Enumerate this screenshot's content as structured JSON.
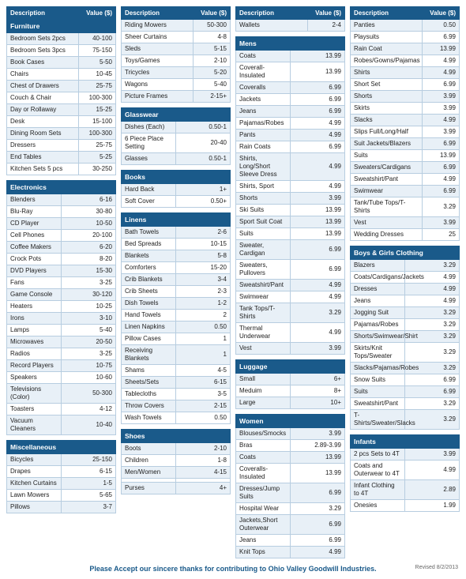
{
  "header_desc": "Description",
  "header_val": "Value ($)",
  "columns": [
    [
      {
        "section": "Furniture",
        "headerBefore": true,
        "rows": [
          [
            "Bedroom Sets 2pcs",
            "40-100"
          ],
          [
            "Bedroom Sets 3pcs",
            "75-150"
          ],
          [
            "Book Cases",
            "5-50"
          ],
          [
            "Chairs",
            "10-45"
          ],
          [
            "Chest of Drawers",
            "25-75"
          ],
          [
            "Couch & Chair",
            "100-300"
          ],
          [
            "Day or Rollaway",
            "15-25"
          ],
          [
            "Desk",
            "15-100"
          ],
          [
            "Dining Room Sets",
            "100-300"
          ],
          [
            "Dressers",
            "25-75"
          ],
          [
            "End Tables",
            "5-25"
          ],
          [
            "Kitchen Sets 5 pcs",
            "30-250"
          ]
        ]
      },
      {
        "section": "Electronics",
        "rows": [
          [
            "Blenders",
            "6-16"
          ],
          [
            "Blu-Ray",
            "30-80"
          ],
          [
            "CD Player",
            "10-50"
          ],
          [
            "Cell Phones",
            "20-100"
          ],
          [
            "Coffee Makers",
            "6-20"
          ],
          [
            "Crock Pots",
            "8-20"
          ],
          [
            "DVD Players",
            "15-30"
          ],
          [
            "Fans",
            "3-25"
          ],
          [
            "Game Console",
            "30-120"
          ],
          [
            "Heaters",
            "10-25"
          ],
          [
            "Irons",
            "3-10"
          ],
          [
            "Lamps",
            "5-40"
          ],
          [
            "Microwaves",
            "20-50"
          ],
          [
            "Radios",
            "3-25"
          ],
          [
            "Record Players",
            "10-75"
          ],
          [
            "Speakers",
            "10-60"
          ],
          [
            "Televisions (Color)",
            "50-300"
          ],
          [
            "Toasters",
            "4-12"
          ],
          [
            "Vacuum Cleaners",
            "10-40"
          ]
        ]
      },
      {
        "section": "Miscellaneous",
        "rows": [
          [
            "Bicycles",
            "25-150"
          ],
          [
            "Drapes",
            "6-15"
          ],
          [
            "Kitchen Curtains",
            "1-5"
          ],
          [
            "Lawn Mowers",
            "5-65"
          ],
          [
            "Pillows",
            "3-7"
          ]
        ]
      }
    ],
    [
      {
        "section": null,
        "headerBefore": true,
        "rows": [
          [
            "Riding Mowers",
            "50-300"
          ],
          [
            "Sheer Curtains",
            "4-8"
          ],
          [
            "Sleds",
            "5-15"
          ],
          [
            "Toys/Games",
            "2-10"
          ],
          [
            "Tricycles",
            "5-20"
          ],
          [
            "Wagons",
            "5-40"
          ],
          [
            "Picture Frames",
            "2-15+"
          ]
        ]
      },
      {
        "section": "Glasswear",
        "rows": [
          [
            "Dishes (Each)",
            "0.50-1"
          ],
          [
            "6 Piece Place Setting",
            "20-40"
          ],
          [
            "Glasses",
            "0.50-1"
          ]
        ]
      },
      {
        "section": "Books",
        "rows": [
          [
            "Hard Back",
            "1+"
          ],
          [
            "Soft Cover",
            "0.50+"
          ]
        ]
      },
      {
        "section": "Linens",
        "rows": [
          [
            "Bath Towels",
            "2-6"
          ],
          [
            "Bed Spreads",
            "10-15"
          ],
          [
            "Blankets",
            "5-8"
          ],
          [
            "Comforters",
            "15-20"
          ],
          [
            "Crib Blankets",
            "3-4"
          ],
          [
            "Crib Sheets",
            "2-3"
          ],
          [
            "Dish Towels",
            "1-2"
          ],
          [
            "Hand Towels",
            "2"
          ],
          [
            "Linen Napkins",
            "0.50"
          ],
          [
            "Pillow Cases",
            "1"
          ],
          [
            "Receiving Blankets",
            "1"
          ],
          [
            "Shams",
            "4-5"
          ],
          [
            "Sheets/Sets",
            "6-15"
          ],
          [
            "Tablecloths",
            "3-5"
          ],
          [
            "Throw Covers",
            "2-15"
          ],
          [
            "Wash Towels",
            "0.50"
          ]
        ]
      },
      {
        "section": "Shoes",
        "rows": [
          [
            "Boots",
            "2-10"
          ],
          [
            "Children",
            "1-8"
          ],
          [
            "Men/Women",
            "4-15"
          ],
          [
            "",
            ""
          ],
          [
            "Purses",
            "4+"
          ]
        ]
      }
    ],
    [
      {
        "section": null,
        "headerBefore": true,
        "rows": [
          [
            "Wallets",
            "2-4"
          ]
        ]
      },
      {
        "section": "Mens",
        "rows": [
          [
            "Coats",
            "13.99"
          ],
          [
            "Coverall-Insulated",
            "13.99"
          ],
          [
            "Coveralls",
            "6.99"
          ],
          [
            "Jackets",
            "6.99"
          ],
          [
            "Jeans",
            "6.99"
          ],
          [
            "Pajamas/Robes",
            "4.99"
          ],
          [
            "Pants",
            "4.99"
          ],
          [
            "Rain Coats",
            "6.99"
          ],
          [
            "Shirts, Long/Short Sleeve Dress",
            "4.99"
          ],
          [
            "Shirts, Sport",
            "4.99"
          ],
          [
            "Shorts",
            "3.99"
          ],
          [
            "Ski Suits",
            "13.99"
          ],
          [
            "Sport Suit Coat",
            "13.99"
          ],
          [
            "Suits",
            "13.99"
          ],
          [
            "Sweater, Cardigan",
            "6.99"
          ],
          [
            "Sweaters, Pullovers",
            "6.99"
          ],
          [
            "Sweatshirt/Pant",
            "4.99"
          ],
          [
            "Swimwear",
            "4.99"
          ],
          [
            "Tank Tops/T-Shirts",
            "3.29"
          ],
          [
            "Thermal Underwear",
            "4.99"
          ],
          [
            "Vest",
            "3.99"
          ]
        ]
      },
      {
        "section": "Luggage",
        "rows": [
          [
            "Small",
            "6+"
          ],
          [
            "Meduim",
            "8+"
          ],
          [
            "Large",
            "10+"
          ]
        ]
      },
      {
        "section": "Women",
        "rows": [
          [
            "Blouses/Smocks",
            "3.99"
          ],
          [
            "Bras",
            "2.89-3.99"
          ],
          [
            "Coats",
            "13.99"
          ],
          [
            "Coveralls-Insulated",
            "13.99"
          ],
          [
            "Dresses/Jump Suits",
            "6.99"
          ],
          [
            "Hospital Wear",
            "3.29"
          ],
          [
            "Jackets,Short Outerwear",
            "6.99"
          ],
          [
            "Jeans",
            "6.99"
          ],
          [
            "Knit Tops",
            "4.99"
          ]
        ]
      }
    ],
    [
      {
        "section": null,
        "headerBefore": true,
        "rows": [
          [
            "Panties",
            "0.50"
          ],
          [
            "Playsuits",
            "6.99"
          ],
          [
            "Rain Coat",
            "13.99"
          ],
          [
            "Robes/Gowns/Pajamas",
            "4.99"
          ],
          [
            "Shirts",
            "4.99"
          ],
          [
            "Short Set",
            "6.99"
          ],
          [
            "Shorts",
            "3.99"
          ],
          [
            "Skirts",
            "3.99"
          ],
          [
            "Slacks",
            "4.99"
          ],
          [
            "Slips Full/Long/Half",
            "3.99"
          ],
          [
            "Suit Jackets/Blazers",
            "6.99"
          ],
          [
            "Suits",
            "13.99"
          ],
          [
            "Sweaters/Cardigans",
            "6.99"
          ],
          [
            "Sweatshirt/Pant",
            "4.99"
          ],
          [
            "Swimwear",
            "6.99"
          ],
          [
            "Tank/Tube Tops/T-Shirts",
            "3.29"
          ],
          [
            "Vest",
            "3.99"
          ],
          [
            "Wedding Dresses",
            "25"
          ]
        ]
      },
      {
        "section": "Boys & Girls Clothing",
        "rows": [
          [
            "Blazers",
            "3.29"
          ],
          [
            "Coats/Cardigans/Jackets",
            "4.99"
          ],
          [
            "Dresses",
            "4.99"
          ],
          [
            "Jeans",
            "4.99"
          ],
          [
            "Jogging Suit",
            "3.29"
          ],
          [
            "Pajamas/Robes",
            "3.29"
          ],
          [
            "Shorts/Swimwear/Shirt",
            "3.29"
          ],
          [
            "Skirts/Knit Tops/Sweater",
            "3.29"
          ],
          [
            "Slacks/Pajamas/Robes",
            "3.29"
          ],
          [
            "Snow Suits",
            "6.99"
          ],
          [
            "Suits",
            "6.99"
          ],
          [
            "Sweatshirt/Pant",
            "3.29"
          ],
          [
            "T-Shirts/Sweater/Slacks",
            "3.29"
          ]
        ]
      },
      {
        "section": "Infants",
        "rows": [
          [
            "2 pcs Sets to 4T",
            "3.99"
          ],
          [
            "Coats and Outerwear to 4T",
            "4.99"
          ],
          [
            "Infant Clothing to 4T",
            "2.89"
          ],
          [
            "Onesies",
            "1.99"
          ]
        ]
      }
    ]
  ],
  "footer_text": "Please Accept our sincere thanks for contributing to Ohio Valley Goodwill Industries.",
  "revised_text": "Revised 8/2/2013"
}
